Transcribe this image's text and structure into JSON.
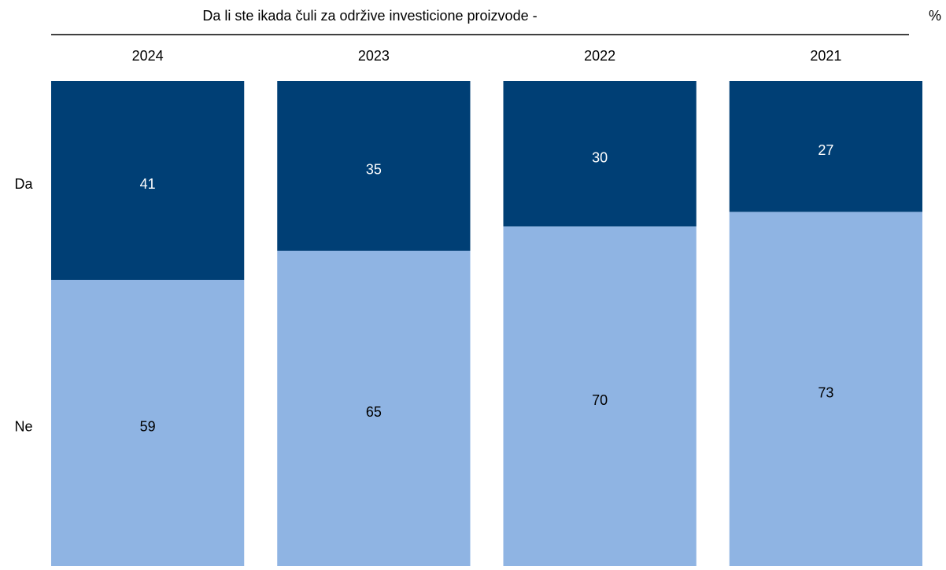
{
  "chart_data": {
    "type": "bar",
    "stacked": true,
    "title": "Da li ste ikada čuli za održive investicione proizvode -",
    "unit": "%",
    "categories": [
      "2024",
      "2023",
      "2022",
      "2021"
    ],
    "series": [
      {
        "name": "Da",
        "color": "#003f75",
        "label_color": "#ffffff",
        "values": [
          41,
          35,
          30,
          27
        ]
      },
      {
        "name": "Ne",
        "color": "#8fb4e3",
        "label_color": "#000000",
        "values": [
          59,
          65,
          70,
          73
        ]
      }
    ]
  }
}
